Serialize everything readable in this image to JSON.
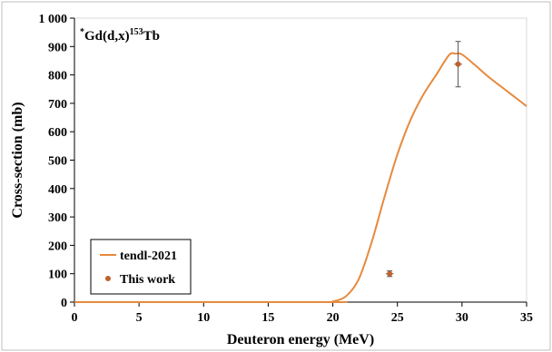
{
  "chart_data": {
    "type": "line",
    "title": {
      "sup": "*",
      "main": "Gd(d,x)",
      "sup2": "153",
      "tail": "Tb"
    },
    "xlabel": "Deuteron energy (MeV)",
    "ylabel": "Cross-section (mb)",
    "xlim": [
      0,
      35
    ],
    "ylim": [
      0,
      1000
    ],
    "xticks": [
      0,
      5,
      10,
      15,
      20,
      25,
      30,
      35
    ],
    "yticks": [
      0,
      100,
      200,
      300,
      400,
      500,
      600,
      700,
      800,
      900,
      1000
    ],
    "ytick_labels": [
      "0",
      "100",
      "200",
      "300",
      "400",
      "500",
      "600",
      "700",
      "800",
      "900",
      "1 000"
    ],
    "grid": false,
    "legend": {
      "placement": "bottom-left",
      "entries": [
        "tendl-2021",
        "This work"
      ]
    },
    "series": [
      {
        "name": "tendl-2021",
        "kind": "line",
        "color": "#E68A3E",
        "x": [
          0,
          19.5,
          20,
          21,
          22,
          23,
          24,
          25,
          26,
          27,
          28,
          29,
          29.5,
          30,
          31,
          32,
          33,
          34,
          35
        ],
        "y": [
          0,
          0,
          2,
          20,
          80,
          210,
          370,
          520,
          640,
          730,
          800,
          870,
          875,
          872,
          835,
          795,
          760,
          725,
          690
        ]
      },
      {
        "name": "This work",
        "kind": "points",
        "color": "#C0622C",
        "points": [
          {
            "x": 24.4,
            "y": 100,
            "yerr": 10,
            "xerr": 0.3
          },
          {
            "x": 29.7,
            "y": 838,
            "yerr": 80,
            "xerr": 0.3
          }
        ]
      }
    ]
  }
}
